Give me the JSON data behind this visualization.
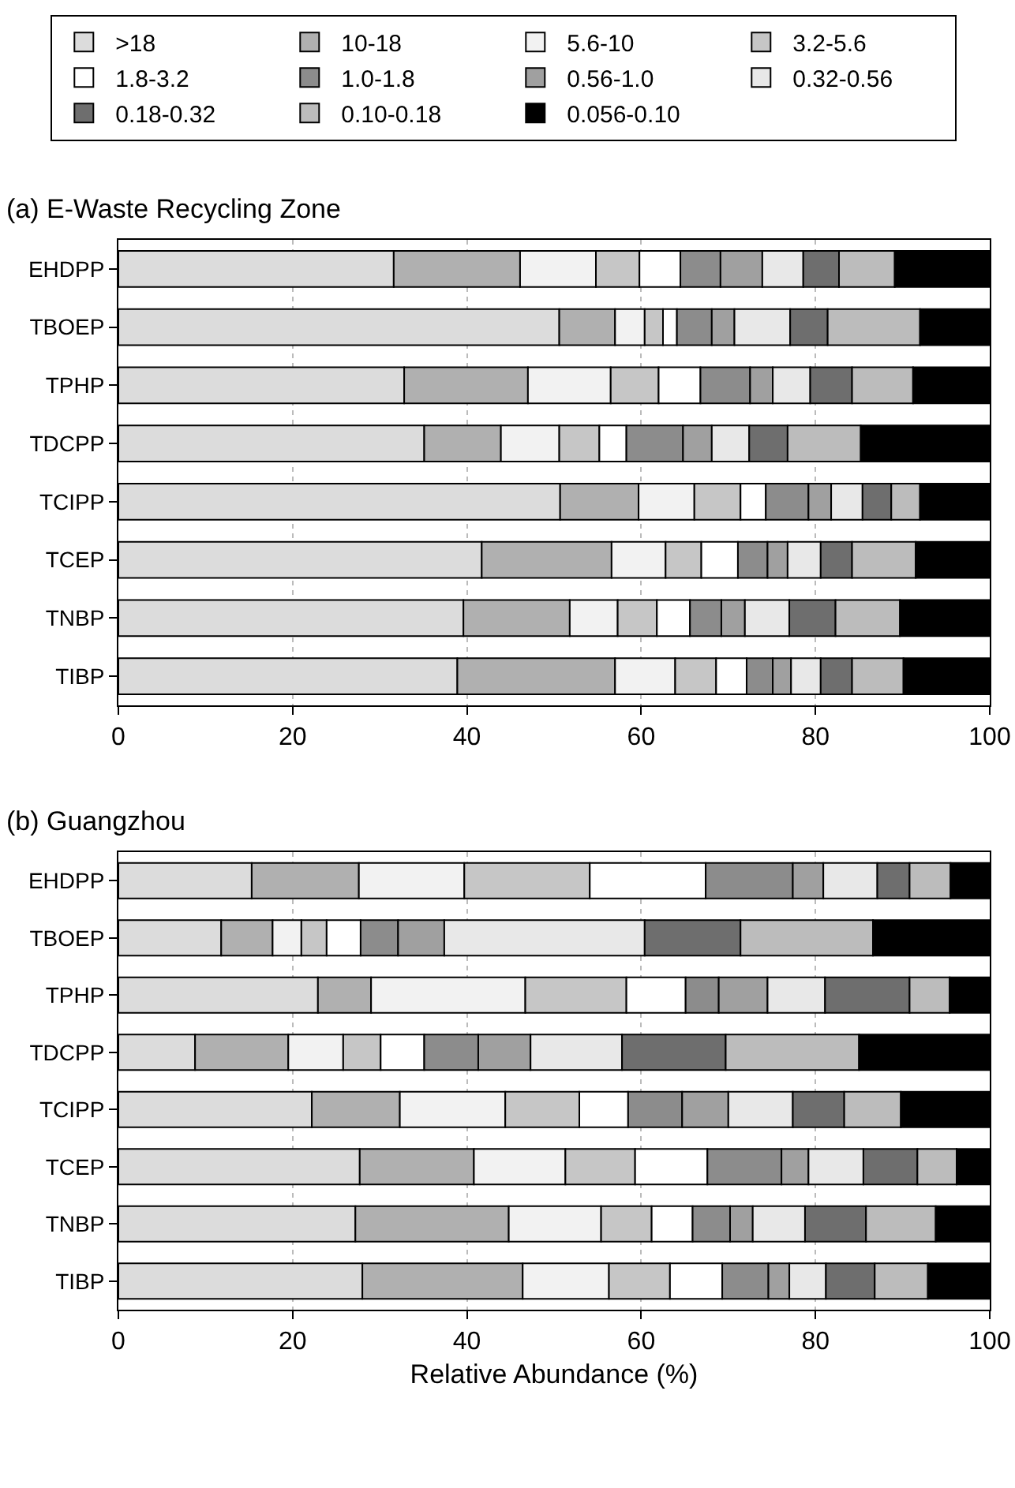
{
  "chart_data": [
    {
      "type": "bar",
      "orientation": "horizontal",
      "stacked": true,
      "title": "(a) E-Waste Recycling Zone",
      "legend": "top",
      "grid": "x",
      "categories": [
        "EHDPP",
        "TBOEP",
        "TPHP",
        "TDCPP",
        "TCIPP",
        "TCEP",
        "TNBP",
        "TIBP"
      ],
      "xlim": [
        0,
        100
      ],
      "xticks": [
        0,
        20,
        40,
        60,
        80,
        100
      ],
      "series": [
        {
          "name": ">18",
          "color": "#dcdcdc",
          "values": [
            31.6,
            50.6,
            32.8,
            35.1,
            50.7,
            41.7,
            39.6,
            38.9
          ]
        },
        {
          "name": "10-18",
          "color": "#b0b0b0",
          "values": [
            14.5,
            6.4,
            14.2,
            8.8,
            9.0,
            14.9,
            12.2,
            18.1
          ]
        },
        {
          "name": "5.6-10",
          "color": "#f2f2f2",
          "values": [
            8.7,
            3.4,
            9.5,
            6.7,
            6.4,
            6.2,
            5.5,
            6.9
          ]
        },
        {
          "name": "3.2-5.6",
          "color": "#c6c6c6",
          "values": [
            5.0,
            2.1,
            5.5,
            4.6,
            5.3,
            4.1,
            4.5,
            4.7
          ]
        },
        {
          "name": "1.8-3.2",
          "color": "#ffffff",
          "values": [
            4.7,
            1.6,
            4.8,
            3.1,
            2.9,
            4.2,
            3.8,
            3.5
          ]
        },
        {
          "name": "1.0-1.8",
          "color": "#8c8c8c",
          "values": [
            4.6,
            4.0,
            5.7,
            6.5,
            4.9,
            3.4,
            3.6,
            3.0
          ]
        },
        {
          "name": "0.56-1.0",
          "color": "#a0a0a0",
          "values": [
            4.8,
            2.6,
            2.6,
            3.3,
            2.6,
            2.3,
            2.7,
            2.1
          ]
        },
        {
          "name": "0.32-0.56",
          "color": "#e8e8e8",
          "values": [
            4.7,
            6.4,
            4.3,
            4.3,
            3.6,
            3.8,
            5.1,
            3.4
          ]
        },
        {
          "name": "0.18-0.32",
          "color": "#6e6e6e",
          "values": [
            4.1,
            4.3,
            4.8,
            4.4,
            3.3,
            3.6,
            5.3,
            3.6
          ]
        },
        {
          "name": "0.10-0.18",
          "color": "#bcbcbc",
          "values": [
            6.4,
            10.6,
            7.0,
            8.4,
            3.3,
            7.3,
            7.4,
            5.9
          ]
        },
        {
          "name": "0.056-0.10",
          "color": "#000000",
          "values": [
            10.9,
            8.0,
            8.8,
            14.8,
            8.0,
            8.5,
            10.3,
            9.9
          ]
        }
      ]
    },
    {
      "type": "bar",
      "orientation": "horizontal",
      "stacked": true,
      "title": "(b) Guangzhou",
      "xlabel": "Relative Abundance (%)",
      "grid": "x",
      "categories": [
        "EHDPP",
        "TBOEP",
        "TPHP",
        "TDCPP",
        "TCIPP",
        "TCEP",
        "TNBP",
        "TIBP"
      ],
      "xlim": [
        0,
        100
      ],
      "xticks": [
        0,
        20,
        40,
        60,
        80,
        100
      ],
      "series": [
        {
          "color": "#dcdcdc",
          "values": [
            15.3,
            11.8,
            22.9,
            8.8,
            22.2,
            27.7,
            27.2,
            28.0
          ]
        },
        {
          "color": "#b0b0b0",
          "values": [
            12.3,
            5.9,
            6.1,
            10.7,
            10.1,
            13.1,
            17.6,
            18.4
          ]
        },
        {
          "color": "#f2f2f2",
          "values": [
            12.1,
            3.3,
            17.7,
            6.3,
            12.1,
            10.5,
            10.6,
            9.9
          ]
        },
        {
          "color": "#c6c6c6",
          "values": [
            14.4,
            2.9,
            11.6,
            4.3,
            8.5,
            8.0,
            5.8,
            7.0
          ]
        },
        {
          "color": "#ffffff",
          "values": [
            13.3,
            3.9,
            6.8,
            5.0,
            5.6,
            8.3,
            4.7,
            6.0
          ]
        },
        {
          "color": "#8c8c8c",
          "values": [
            10.0,
            4.3,
            3.8,
            6.2,
            6.2,
            8.5,
            4.3,
            5.3
          ]
        },
        {
          "color": "#a0a0a0",
          "values": [
            3.5,
            5.3,
            5.6,
            6.0,
            5.3,
            3.1,
            2.6,
            2.4
          ]
        },
        {
          "color": "#e8e8e8",
          "values": [
            6.2,
            23.0,
            6.6,
            10.5,
            7.4,
            6.3,
            6.0,
            4.2
          ]
        },
        {
          "color": "#6e6e6e",
          "values": [
            3.7,
            11.0,
            9.7,
            11.9,
            5.9,
            6.2,
            7.0,
            5.6
          ]
        },
        {
          "color": "#bcbcbc",
          "values": [
            4.7,
            15.2,
            4.6,
            15.3,
            6.5,
            4.5,
            8.0,
            6.1
          ]
        },
        {
          "color": "#000000",
          "values": [
            4.5,
            13.4,
            4.6,
            15.0,
            10.2,
            3.8,
            6.2,
            7.1
          ]
        }
      ]
    }
  ]
}
